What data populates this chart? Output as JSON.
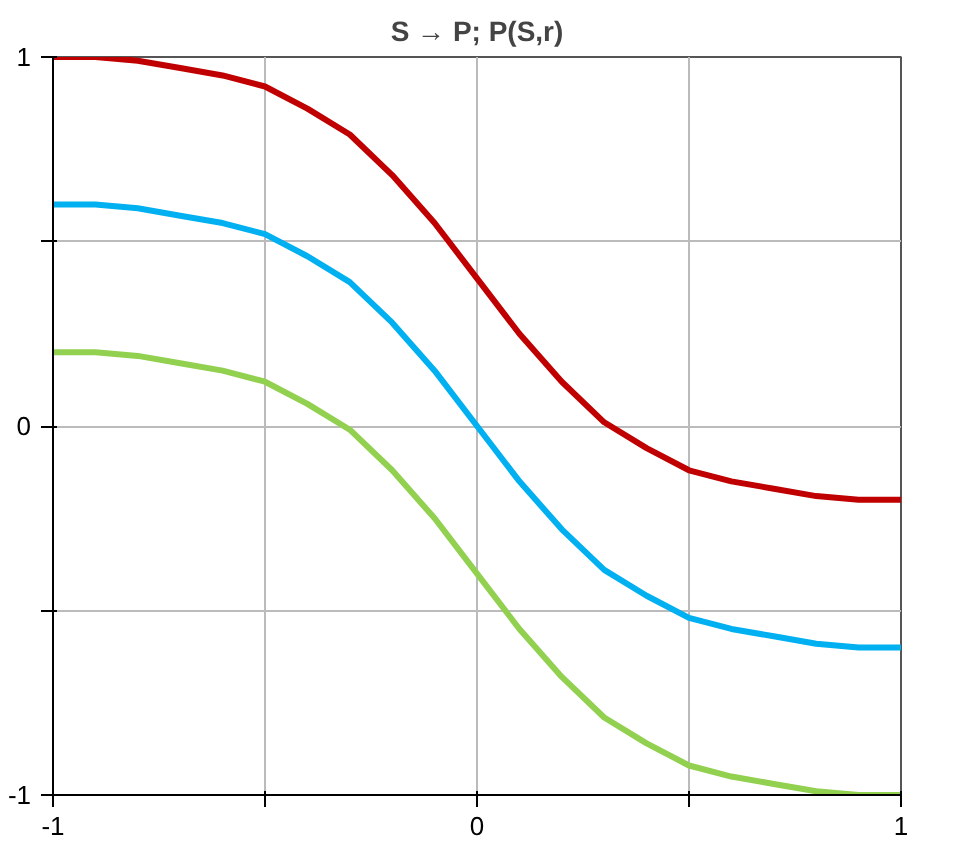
{
  "chart_data": {
    "type": "line",
    "title": "S → P; P(S,r)",
    "x": [
      -1,
      -0.9,
      -0.8,
      -0.7,
      -0.6,
      -0.5,
      -0.4,
      -0.3,
      -0.2,
      -0.1,
      0,
      0.1,
      0.2,
      0.3,
      0.4,
      0.5,
      0.6,
      0.7,
      0.8,
      0.9,
      1
    ],
    "series": [
      {
        "color": "#c00000",
        "values": [
          1,
          1,
          0.99,
          0.97,
          0.95,
          0.92,
          0.86,
          0.79,
          0.68,
          0.55,
          0.4,
          0.25,
          0.12,
          0.01,
          -0.06,
          -0.12,
          -0.15,
          -0.17,
          -0.19,
          -0.2,
          -0.2
        ]
      },
      {
        "color": "#00b0f0",
        "values": [
          0.6,
          0.6,
          0.59,
          0.57,
          0.55,
          0.52,
          0.46,
          0.39,
          0.28,
          0.15,
          0,
          -0.15,
          -0.28,
          -0.39,
          -0.46,
          -0.52,
          -0.55,
          -0.57,
          -0.59,
          -0.6,
          -0.6
        ]
      },
      {
        "color": "#92d050",
        "values": [
          0.2,
          0.2,
          0.19,
          0.17,
          0.15,
          0.12,
          0.06,
          -0.01,
          -0.12,
          -0.25,
          -0.4,
          -0.55,
          -0.68,
          -0.79,
          -0.86,
          -0.92,
          -0.95,
          -0.97,
          -0.99,
          -1,
          -1
        ]
      }
    ],
    "xlim": [
      -1,
      1
    ],
    "ylim": [
      -1,
      1
    ],
    "xticks": [
      -1,
      {
        "value": -0.5,
        "label": null
      },
      0,
      {
        "value": 0.5,
        "label": null
      },
      1
    ],
    "yticks": [
      -1,
      {
        "value": -0.5,
        "label": null
      },
      0,
      {
        "value": 0.5,
        "label": null
      },
      1
    ],
    "grid": true,
    "line_style": "solid"
  }
}
